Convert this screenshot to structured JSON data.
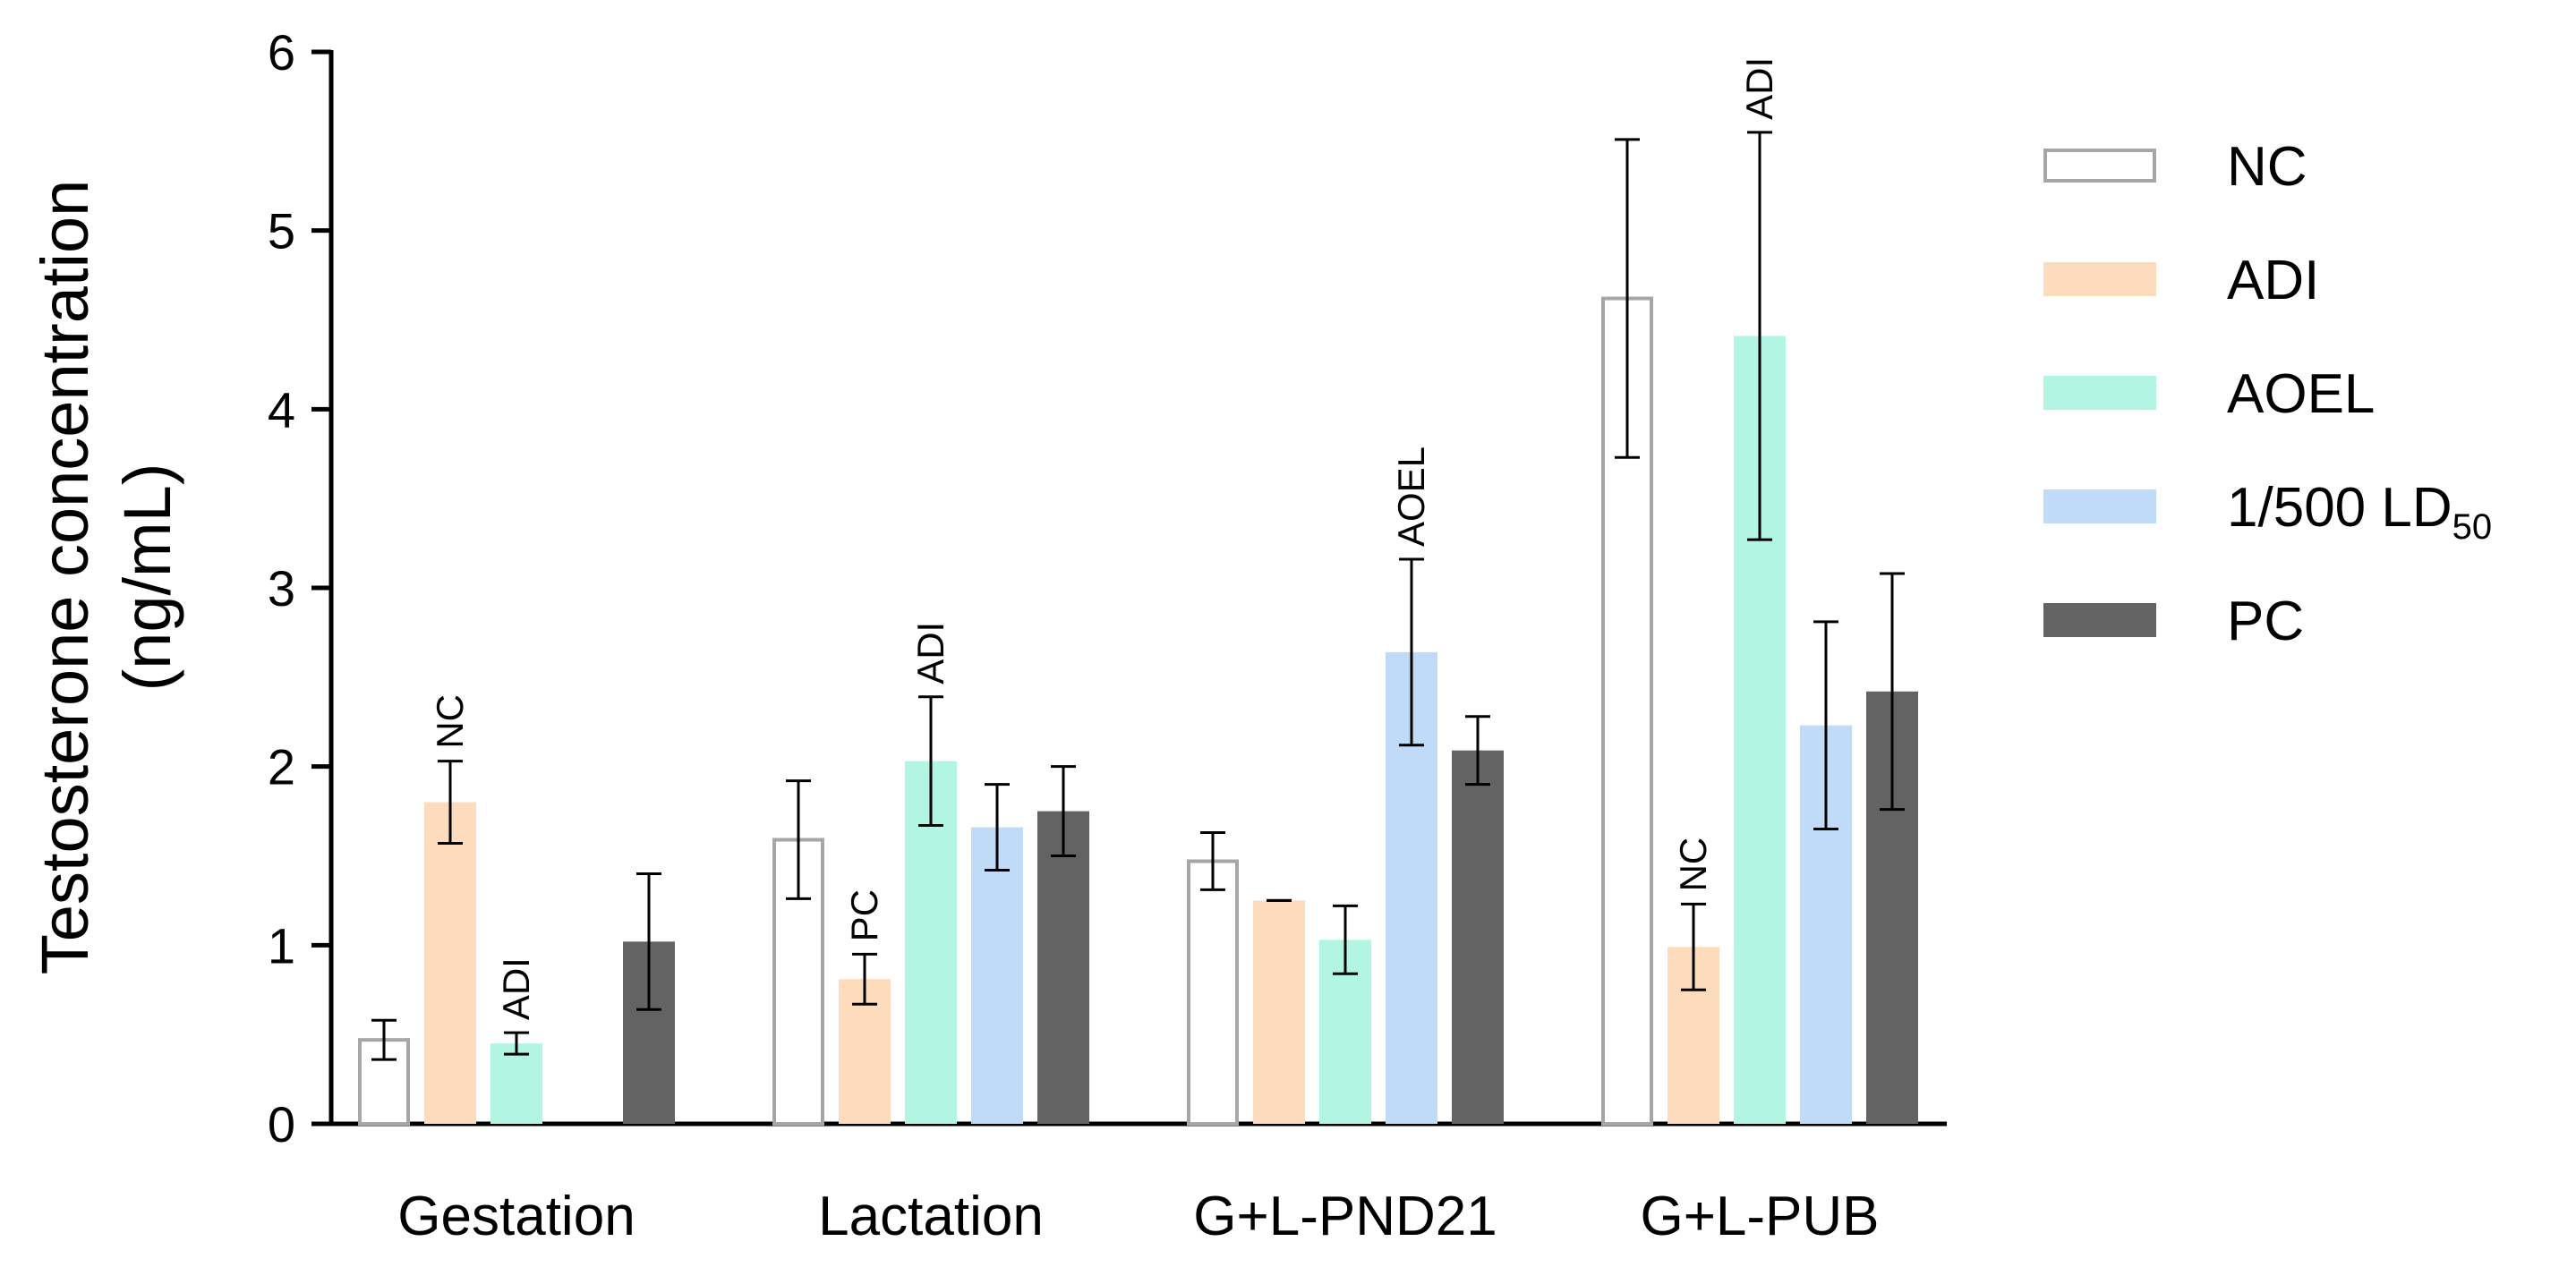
{
  "chart_data": {
    "type": "bar",
    "title": "",
    "xlabel": "",
    "ylabel_line1": "Testosterone concentration",
    "ylabel_line2": "(ng/mL)",
    "ylim": [
      0,
      6
    ],
    "yticks": [
      "0",
      "1",
      "2",
      "3",
      "4",
      "5",
      "6"
    ],
    "categories": [
      "Gestation",
      "Lactation",
      "G+L-PND21",
      "G+L-PUB"
    ],
    "legend_position": "right",
    "legend_subscript": "50",
    "series": [
      {
        "name": "NC",
        "fill": "#ffffff",
        "stroke": "#a6a6a6",
        "values": [
          0.47,
          1.59,
          1.47,
          4.62
        ],
        "err": [
          0.11,
          0.33,
          0.16,
          0.89
        ]
      },
      {
        "name": "ADI",
        "fill": "#fcdcbc",
        "stroke": "#fcdcbc",
        "values": [
          1.8,
          0.81,
          1.25,
          0.99
        ],
        "err": [
          0.23,
          0.14,
          0.0,
          0.24
        ]
      },
      {
        "name": "AOEL",
        "fill": "#b3f5e3",
        "stroke": "#b3f5e3",
        "values": [
          0.45,
          2.03,
          1.03,
          4.41
        ],
        "err": [
          0.06,
          0.36,
          0.19,
          1.14
        ]
      },
      {
        "name": "1/500 LD",
        "fill": "#bfdbf7",
        "stroke": "#bfdbf7",
        "values": [
          null,
          1.66,
          2.64,
          2.23
        ],
        "err": [
          null,
          0.24,
          0.52,
          0.58
        ]
      },
      {
        "name": "PC",
        "fill": "#636363",
        "stroke": "#636363",
        "values": [
          1.02,
          1.75,
          2.09,
          2.42
        ],
        "err": [
          0.38,
          0.25,
          0.19,
          0.66
        ]
      }
    ],
    "annotations": [
      {
        "category": 0,
        "series": 1,
        "text": "NC"
      },
      {
        "category": 0,
        "series": 2,
        "text": "ADI"
      },
      {
        "category": 1,
        "series": 1,
        "text": "PC"
      },
      {
        "category": 1,
        "series": 2,
        "text": "ADI"
      },
      {
        "category": 2,
        "series": 3,
        "text": "AOEL"
      },
      {
        "category": 3,
        "series": 1,
        "text": "NC"
      },
      {
        "category": 3,
        "series": 2,
        "text": "ADI"
      }
    ]
  }
}
